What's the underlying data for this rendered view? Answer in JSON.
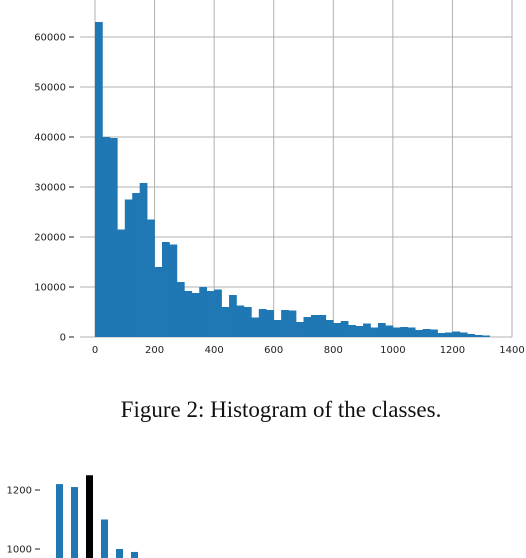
{
  "chart_data": [
    {
      "type": "bar",
      "title": "",
      "xlabel": "",
      "ylabel": "",
      "caption": "Figure 2: Histogram of the classes.",
      "grid": true,
      "bin_width": 25,
      "xlim": [
        0,
        1400
      ],
      "ylim": [
        0,
        65000
      ],
      "xticks": [
        "0",
        "200",
        "400",
        "600",
        "800",
        "1000",
        "1200",
        "1400"
      ],
      "yticks": [
        "0",
        "10000",
        "20000",
        "30000",
        "40000",
        "50000",
        "60000"
      ],
      "colors": {
        "bar": "#1f77b4"
      },
      "x": [
        0,
        25,
        50,
        75,
        100,
        125,
        150,
        175,
        200,
        225,
        250,
        275,
        300,
        325,
        350,
        375,
        400,
        425,
        450,
        475,
        500,
        525,
        550,
        575,
        600,
        625,
        650,
        675,
        700,
        725,
        750,
        775,
        800,
        825,
        850,
        875,
        900,
        925,
        950,
        975,
        1000,
        1025,
        1050,
        1075,
        1100,
        1125,
        1150,
        1175,
        1200,
        1225,
        1250,
        1275,
        1300
      ],
      "values": [
        63000,
        40000,
        39800,
        21500,
        27500,
        28800,
        30800,
        23500,
        14000,
        19000,
        18500,
        11000,
        9200,
        8800,
        10000,
        9200,
        9500,
        6000,
        8400,
        6300,
        6000,
        3900,
        5600,
        5400,
        3400,
        5400,
        5300,
        3000,
        4000,
        4400,
        4400,
        3400,
        2800,
        3200,
        2400,
        2200,
        2700,
        1900,
        2800,
        2300,
        1900,
        2000,
        1900,
        1400,
        1600,
        1500,
        800,
        900,
        1100,
        900,
        600,
        400,
        300
      ]
    },
    {
      "type": "bar",
      "title": "",
      "xlabel": "",
      "ylabel": "",
      "grid": false,
      "ylim": [
        900,
        1250
      ],
      "yticks": [
        "1200",
        "1000"
      ],
      "colors": {
        "bar": "#1f77b4",
        "highlight": "#000000"
      },
      "values": [
        1220,
        1210,
        1250,
        1100,
        1000,
        990
      ],
      "highlight_index": 2
    }
  ]
}
